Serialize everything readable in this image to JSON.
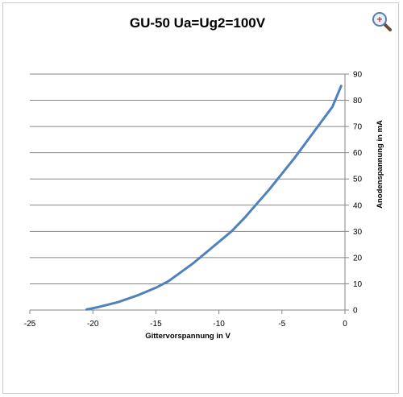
{
  "zoom_button": {
    "icon": "zoom-in-icon",
    "symbol": "+"
  },
  "chart_data": {
    "type": "line",
    "title": "GU-50 Ua=Ug2=100V",
    "xlabel": "Gittervorspannung in V",
    "ylabel": "Anodenspannung in mA",
    "xlim": [
      -25,
      0
    ],
    "ylim": [
      0,
      90
    ],
    "xticks": [
      -25,
      -20,
      -15,
      -10,
      -5,
      0
    ],
    "yticks": [
      0,
      10,
      20,
      30,
      40,
      50,
      60,
      70,
      80,
      90
    ],
    "y_axis_side": "right",
    "grid": {
      "horizontal": true,
      "vertical": false
    },
    "legend": "none",
    "series": [
      {
        "color": "#4f81bd",
        "x": [
          -20.5,
          -19.5,
          -18,
          -16.5,
          -15,
          -14,
          -13,
          -12,
          -11,
          -10,
          -9,
          -8,
          -7,
          -6,
          -5,
          -4,
          -3,
          -2,
          -1,
          -0.3
        ],
        "y": [
          0.2,
          1.2,
          3,
          5.5,
          8.5,
          11,
          14.5,
          18,
          22,
          26,
          30,
          35,
          40.5,
          46,
          52,
          58,
          64.5,
          71,
          77.5,
          85.5
        ]
      }
    ]
  }
}
